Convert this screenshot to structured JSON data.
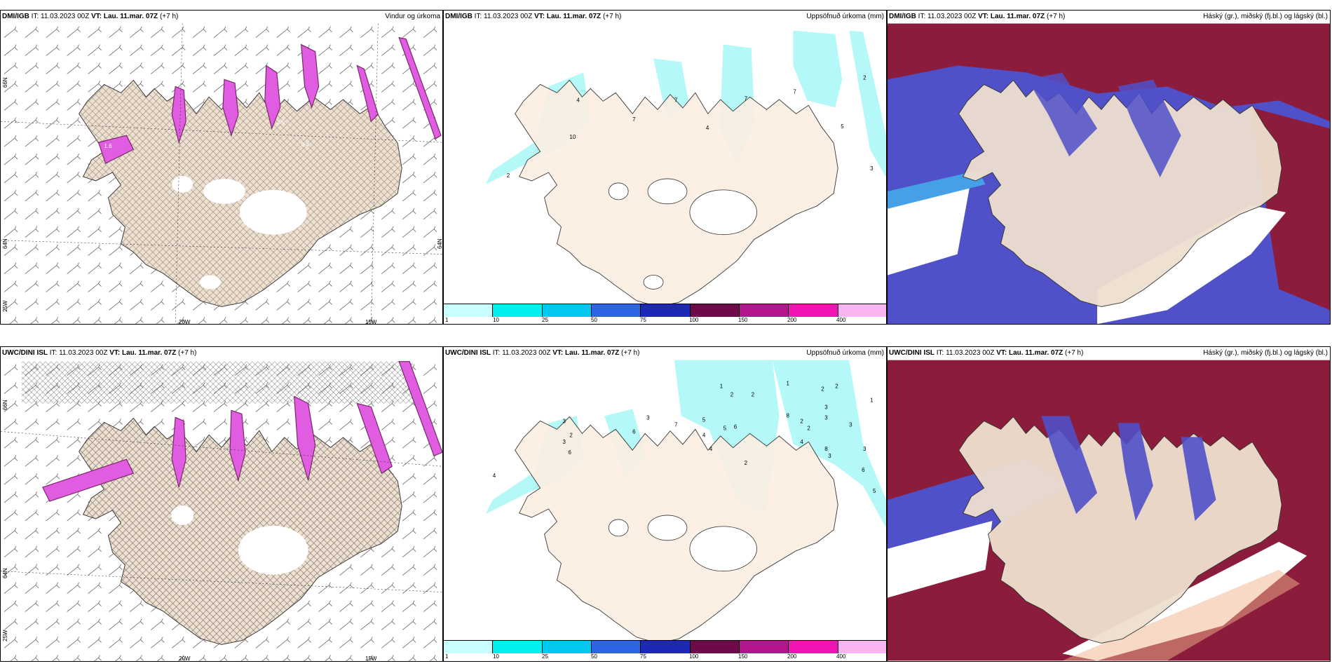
{
  "panels": [
    {
      "header": {
        "model": "DMI/IGB",
        "it": "IT: 11.03.2023 00Z",
        "vt": "VT: Lau. 11.mar. 07Z",
        "lead": "(+7 h)"
      },
      "title": "Vindur og úrkoma",
      "lon_labels": [
        "20W",
        "15W"
      ],
      "lat_labels": [
        "66N",
        "64N",
        "25W",
        "64N"
      ]
    },
    {
      "header": {
        "model": "DMI/IGB",
        "it": "IT: 11.03.2023 00Z",
        "vt": "VT: Lau. 11.mar. 07Z",
        "lead": "(+7 h)"
      },
      "title": "Uppsöfnuð úrkoma (mm)",
      "station_values": [
        "4",
        "7",
        "7",
        "7",
        "7",
        "10",
        "2",
        "4",
        "2",
        "3",
        "5"
      ]
    },
    {
      "header": {
        "model": "DMI/IGB",
        "it": "IT: 11.03.2023 00Z",
        "vt": "VT: Lau. 11.mar. 07Z",
        "lead": "(+7 h)"
      },
      "title": "Háský (gr.), miðský (fj.bl.) og lágský (bl.)"
    },
    {
      "header": {
        "model": "UWC/DINI ISL",
        "it": "IT: 11.03.2023 00Z",
        "vt": "VT: Lau. 11.mar. 07Z",
        "lead": "(+7 h)"
      },
      "title": "",
      "lon_labels": [
        "20W",
        "15W"
      ],
      "lat_labels": [
        "66N",
        "64N",
        "25W"
      ]
    },
    {
      "header": {
        "model": "UWC/DINI ISL",
        "it": "IT: 11.03.2023 00Z",
        "vt": "VT: Lau. 11.mar. 07Z",
        "lead": "(+7 h)"
      },
      "title": "Uppsöfnuð úrkoma (mm)",
      "station_values": [
        "3",
        "2",
        "3",
        "6",
        "3",
        "6",
        "7",
        "5",
        "1",
        "2",
        "2",
        "5",
        "6",
        "4",
        "8",
        "2",
        "2",
        "1",
        "2",
        "3",
        "4",
        "2",
        "3",
        "1",
        "3",
        "8",
        "3",
        "3",
        "6",
        "5",
        "4",
        "2",
        "4"
      ]
    },
    {
      "header": {
        "model": "UWC/DINI ISL",
        "it": "IT: 11.03.2023 00Z",
        "vt": "VT: Lau. 11.mar. 07Z",
        "lead": "(+7 h)"
      },
      "title": "Háský (gr.), miðský (fj.bl.) og lágský (bl.)"
    }
  ],
  "colorbar": {
    "colors": [
      "#c8ffff",
      "#00f0f0",
      "#00c8f0",
      "#2c64e6",
      "#1e28b4",
      "#6e0a4a",
      "#b4148c",
      "#f014b4",
      "#f8b4f0"
    ],
    "ticks": [
      "1",
      "10",
      "25",
      "50",
      "75",
      "100",
      "150",
      "200",
      "400"
    ]
  },
  "colors": {
    "land": "#efe0cf",
    "land_precip_panel": "#fcefe3",
    "precip_cyan": "#b4f8f8",
    "precip_magenta": "#e05ce0",
    "precip_dark": "#7a2868",
    "cloud_high": "#8c1c3c",
    "cloud_mid": "#5050c8",
    "cloud_low": "#46a0e6"
  }
}
